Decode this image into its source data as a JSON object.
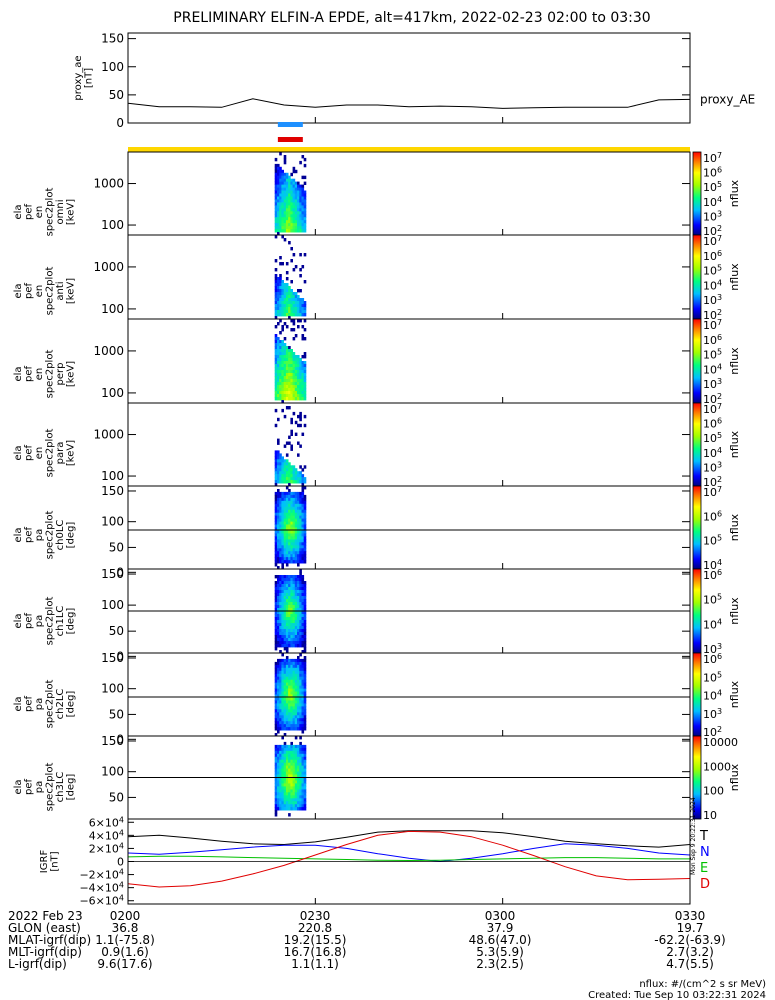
{
  "title": "PRELIMINARY ELFIN-A EPDE, alt=417km, 2022-02-23 02:00 to 03:30",
  "colors": {
    "state_bar": "#ffd700",
    "bar_blue": "#1e90ff",
    "bar_red": "#e00000",
    "T": "#000000",
    "N": "#0000ff",
    "E": "#00c000",
    "D": "#e00000"
  },
  "chart_data": [
    {
      "id": "proxy_ae",
      "type": "line",
      "ylabel": [
        "proxy_ae",
        "[nT]"
      ],
      "yticks": [
        "150",
        "100",
        "50",
        "0"
      ],
      "ylim": [
        0,
        160
      ],
      "legend": "proxy_AE",
      "x_minutes": [
        0,
        5,
        10,
        15,
        20,
        25,
        30,
        35,
        40,
        45,
        50,
        55,
        60,
        65,
        70,
        75,
        80,
        85,
        90
      ],
      "values": [
        35,
        29,
        29,
        28,
        43,
        32,
        28,
        32,
        32,
        29,
        30,
        29,
        26,
        27,
        28,
        28,
        28,
        41,
        42
      ]
    },
    {
      "id": "en_omni",
      "type": "heatmap",
      "ylabel": [
        "ela",
        "pef",
        "en",
        "spec2plot",
        "omni",
        "[keV]"
      ],
      "yticks": [
        "1000",
        "100"
      ],
      "color_label": "nflux",
      "color_ticks": [
        "10^7",
        "10^6",
        "10^5",
        "10^4",
        "10^3",
        "10^2"
      ]
    },
    {
      "id": "en_anti",
      "type": "heatmap",
      "ylabel": [
        "ela",
        "pef",
        "en",
        "spec2plot",
        "anti",
        "[keV]"
      ],
      "yticks": [
        "1000",
        "100"
      ],
      "color_label": "nflux",
      "color_ticks": [
        "10^7",
        "10^6",
        "10^5",
        "10^4",
        "10^3",
        "10^2"
      ]
    },
    {
      "id": "en_perp",
      "type": "heatmap",
      "ylabel": [
        "ela",
        "pef",
        "en",
        "spec2plot",
        "perp",
        "[keV]"
      ],
      "yticks": [
        "1000",
        "100"
      ],
      "color_label": "nflux",
      "color_ticks": [
        "10^7",
        "10^6",
        "10^5",
        "10^4",
        "10^3",
        "10^2"
      ]
    },
    {
      "id": "en_para",
      "type": "heatmap",
      "ylabel": [
        "ela",
        "pef",
        "en",
        "spec2plot",
        "para",
        "[keV]"
      ],
      "yticks": [
        "1000",
        "100"
      ],
      "color_label": "nflux",
      "color_ticks": [
        "10^7",
        "10^6",
        "10^5",
        "10^4",
        "10^3",
        "10^2"
      ]
    },
    {
      "id": "pa_ch0LC",
      "type": "heatmap",
      "ylabel": [
        "ela",
        "pef",
        "pa",
        "spec2plot",
        "ch0LC",
        "[deg]"
      ],
      "yticks": [
        "150",
        "100",
        "50",
        "0"
      ],
      "color_label": "nflux",
      "color_ticks": [
        "10^7",
        "10^6",
        "10^5",
        "10^4"
      ]
    },
    {
      "id": "pa_ch1LC",
      "type": "heatmap",
      "ylabel": [
        "ela",
        "pef",
        "pa",
        "spec2plot",
        "ch1LC",
        "[deg]"
      ],
      "yticks": [
        "150",
        "100",
        "50",
        "0"
      ],
      "color_label": "nflux",
      "color_ticks": [
        "10^6",
        "10^5",
        "10^4",
        "10^3"
      ]
    },
    {
      "id": "pa_ch2LC",
      "type": "heatmap",
      "ylabel": [
        "ela",
        "pef",
        "pa",
        "spec2plot",
        "ch2LC",
        "[deg]"
      ],
      "yticks": [
        "150",
        "100",
        "50",
        "0"
      ],
      "color_label": "nflux",
      "color_ticks": [
        "10^6",
        "10^5",
        "10^4",
        "10^3",
        "10^2"
      ]
    },
    {
      "id": "pa_ch3LC",
      "type": "heatmap",
      "ylabel": [
        "ela",
        "pef",
        "pa",
        "spec2plot",
        "ch3LC",
        "[deg]"
      ],
      "yticks": [
        "150",
        "100",
        "50"
      ],
      "color_label": "nflux",
      "color_ticks": [
        "10000",
        "1000",
        "100",
        "10"
      ]
    },
    {
      "id": "igrf",
      "type": "line",
      "ylabel": [
        "IGRF",
        "[nT]"
      ],
      "yticks": [
        "6×10^4",
        "4×10^4",
        "2×10^4",
        "0",
        "−2×10^4",
        "−4×10^4",
        "−6×10^4"
      ],
      "ylim": [
        -65000,
        65000
      ],
      "legend": [
        "T",
        "N",
        "E",
        "D"
      ],
      "side_note": "Mon Sep 9 20:22:31 2024",
      "x_minutes": [
        0,
        5,
        10,
        15,
        20,
        25,
        30,
        35,
        40,
        45,
        50,
        55,
        60,
        65,
        70,
        75,
        80,
        85,
        90
      ],
      "series": [
        {
          "name": "T",
          "values": [
            38000,
            40000,
            36000,
            31000,
            27000,
            26000,
            30000,
            37000,
            45000,
            47000,
            47000,
            47000,
            44000,
            38000,
            31000,
            27000,
            24000,
            22000,
            26000
          ]
        },
        {
          "name": "N",
          "values": [
            13000,
            11000,
            14000,
            18000,
            22000,
            25000,
            25000,
            20000,
            12000,
            5000,
            0,
            5000,
            12000,
            20000,
            27000,
            25000,
            20000,
            13000,
            10000
          ]
        },
        {
          "name": "E",
          "values": [
            7000,
            8000,
            8000,
            7000,
            6000,
            5000,
            4000,
            3000,
            2000,
            1500,
            2000,
            3000,
            4000,
            5000,
            6000,
            6000,
            5000,
            4000,
            4000
          ]
        },
        {
          "name": "D",
          "values": [
            -34000,
            -39000,
            -37000,
            -30000,
            -19000,
            -6000,
            10000,
            26000,
            40000,
            46000,
            45000,
            38000,
            25000,
            9000,
            -8000,
            -22000,
            -28000,
            -27000,
            -26000
          ]
        }
      ]
    }
  ],
  "x_axis": {
    "ticks": [
      "0200",
      "0230",
      "0300",
      "0330"
    ],
    "tick_minutes": [
      0,
      30,
      60,
      90
    ],
    "rows": [
      {
        "label": "2022 Feb 23",
        "values": [
          "0200",
          "0230",
          "0300",
          "0330"
        ]
      },
      {
        "label": "GLON (east)",
        "values": [
          "36.8",
          "220.8",
          "37.9",
          "19.7"
        ]
      },
      {
        "label": "MLAT-igrf(dip)",
        "values": [
          "1.1(-75.8)",
          "19.2(15.5)",
          "48.6(47.0)",
          "-62.2(-63.9)"
        ]
      },
      {
        "label": "MLT-igrf(dip)",
        "values": [
          "0.9(1.6)",
          "16.7(16.8)",
          "5.3(5.9)",
          "2.7(3.2)"
        ]
      },
      {
        "label": "L-igrf(dip)",
        "values": [
          "9.6(17.6)",
          "1.1(1.1)",
          "2.3(2.5)",
          "4.7(5.5)"
        ]
      }
    ]
  },
  "footer": {
    "units": "nflux: #/(cm^2 s sr MeV)",
    "created": "Created: Tue Sep 10 03:22:31 2024"
  }
}
